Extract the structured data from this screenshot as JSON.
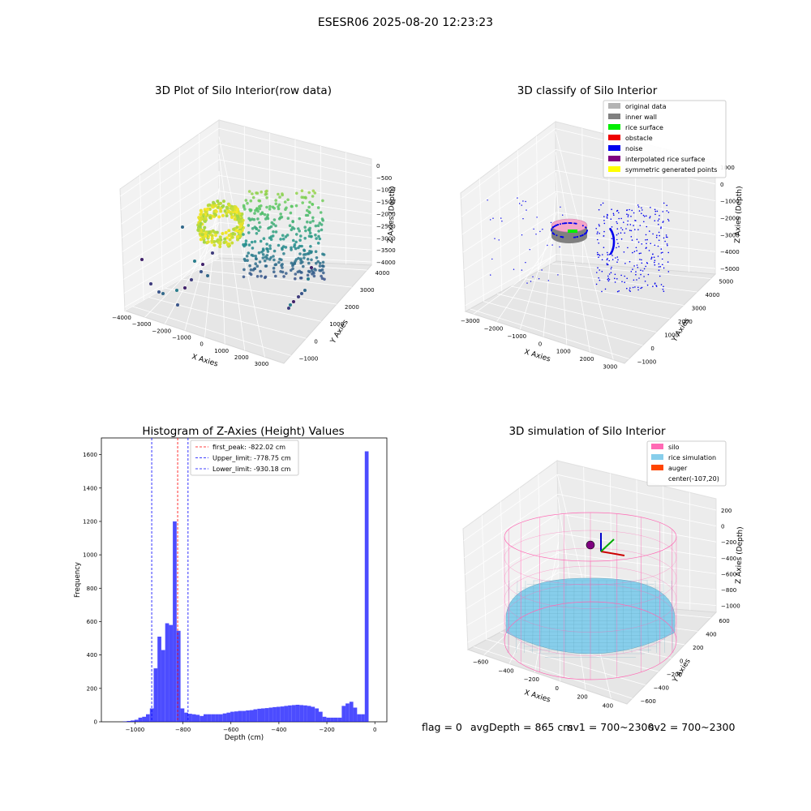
{
  "suptitle": "ESESR06 2025-08-20 12:23:23",
  "panels": {
    "raw": {
      "title": "3D Plot of Silo Interior(row data)",
      "xlabel": "X Axies",
      "ylabel": "Y Axies",
      "zlabel": "Z Axies (Depth)",
      "xticks": [
        "−4000",
        "−3000",
        "−2000",
        "−1000",
        "0",
        "1000",
        "2000",
        "3000"
      ],
      "yticks": [
        "−1000",
        "0",
        "1000",
        "2000",
        "3000",
        "4000"
      ],
      "zticks": [
        "0",
        "−500",
        "−1000",
        "−1500",
        "−2000",
        "−2500",
        "−3000",
        "−3500",
        "−4000"
      ]
    },
    "classify": {
      "title": "3D classify of Silo Interior",
      "xlabel": "X Axies",
      "ylabel": "Y Axies",
      "zlabel": "Z Axies (Depth)",
      "xticks": [
        "−3000",
        "−2000",
        "−1000",
        "0",
        "1000",
        "2000",
        "3000"
      ],
      "yticks": [
        "−1000",
        "0",
        "1000",
        "2000",
        "3000",
        "4000",
        "5000"
      ],
      "zticks": [
        "1000",
        "0",
        "−1000",
        "−2000",
        "−3000",
        "−4000",
        "−5000"
      ],
      "legend": [
        {
          "label": "original data",
          "color": "#b3b3b3"
        },
        {
          "label": "inner wall",
          "color": "#808080"
        },
        {
          "label": "rice surface",
          "color": "#00ee00"
        },
        {
          "label": "obstacle",
          "color": "#ee0000"
        },
        {
          "label": "noise",
          "color": "#0000ee"
        },
        {
          "label": "interpolated rice surface",
          "color": "#800080"
        },
        {
          "label": "symmetric generated points",
          "color": "#ffff00"
        }
      ]
    },
    "simulation": {
      "title": "3D simulation of Silo Interior",
      "xlabel": "X Axies",
      "ylabel": "Y Axies",
      "zlabel": "Z Axies (Depth)",
      "xticks": [
        "−600",
        "−400",
        "−200",
        "0",
        "200",
        "400"
      ],
      "yticks": [
        "−600",
        "−400",
        "−200",
        "0",
        "200",
        "400",
        "600"
      ],
      "zticks": [
        "200",
        "0",
        "−200",
        "−400",
        "−600",
        "−800",
        "−1000"
      ],
      "legend": [
        {
          "label": "silo",
          "color": "#ff69b4"
        },
        {
          "label": "rice simulation",
          "color": "#87ceeb"
        },
        {
          "label": "auger",
          "color": "#ff4500"
        },
        {
          "label": "center(-107,20)",
          "color": ""
        }
      ]
    }
  },
  "chart_data": {
    "type": "bar",
    "title": "Histogram of Z-Axies (Height) Values",
    "xlabel": "Depth (cm)",
    "ylabel": "Frequency",
    "xlim": [
      -1140,
      50
    ],
    "ylim": [
      0,
      1700
    ],
    "xticks": [
      -1000,
      -800,
      -600,
      -400,
      -200,
      0
    ],
    "yticks": [
      0,
      200,
      400,
      600,
      800,
      1000,
      1200,
      1400,
      1600
    ],
    "bar_color": "#0000ff",
    "bin_width": 16,
    "bins": [
      {
        "x": -1050,
        "value": 2
      },
      {
        "x": -1034,
        "value": 5
      },
      {
        "x": -1018,
        "value": 8
      },
      {
        "x": -1002,
        "value": 12
      },
      {
        "x": -986,
        "value": 25
      },
      {
        "x": -970,
        "value": 30
      },
      {
        "x": -954,
        "value": 45
      },
      {
        "x": -938,
        "value": 80
      },
      {
        "x": -922,
        "value": 320
      },
      {
        "x": -906,
        "value": 510
      },
      {
        "x": -890,
        "value": 430
      },
      {
        "x": -874,
        "value": 590
      },
      {
        "x": -858,
        "value": 580
      },
      {
        "x": -842,
        "value": 1200
      },
      {
        "x": -826,
        "value": 545
      },
      {
        "x": -810,
        "value": 80
      },
      {
        "x": -794,
        "value": 55
      },
      {
        "x": -778,
        "value": 48
      },
      {
        "x": -762,
        "value": 45
      },
      {
        "x": -746,
        "value": 42
      },
      {
        "x": -730,
        "value": 35
      },
      {
        "x": -714,
        "value": 45
      },
      {
        "x": -698,
        "value": 45
      },
      {
        "x": -682,
        "value": 45
      },
      {
        "x": -666,
        "value": 45
      },
      {
        "x": -650,
        "value": 45
      },
      {
        "x": -634,
        "value": 50
      },
      {
        "x": -618,
        "value": 55
      },
      {
        "x": -602,
        "value": 60
      },
      {
        "x": -586,
        "value": 62
      },
      {
        "x": -570,
        "value": 65
      },
      {
        "x": -554,
        "value": 65
      },
      {
        "x": -538,
        "value": 68
      },
      {
        "x": -522,
        "value": 70
      },
      {
        "x": -506,
        "value": 75
      },
      {
        "x": -490,
        "value": 78
      },
      {
        "x": -474,
        "value": 80
      },
      {
        "x": -458,
        "value": 82
      },
      {
        "x": -442,
        "value": 85
      },
      {
        "x": -426,
        "value": 88
      },
      {
        "x": -410,
        "value": 90
      },
      {
        "x": -394,
        "value": 92
      },
      {
        "x": -378,
        "value": 95
      },
      {
        "x": -362,
        "value": 98
      },
      {
        "x": -346,
        "value": 100
      },
      {
        "x": -330,
        "value": 102
      },
      {
        "x": -314,
        "value": 100
      },
      {
        "x": -298,
        "value": 98
      },
      {
        "x": -282,
        "value": 95
      },
      {
        "x": -266,
        "value": 90
      },
      {
        "x": -250,
        "value": 80
      },
      {
        "x": -234,
        "value": 60
      },
      {
        "x": -218,
        "value": 30
      },
      {
        "x": -202,
        "value": 25
      },
      {
        "x": -186,
        "value": 25
      },
      {
        "x": -170,
        "value": 25
      },
      {
        "x": -154,
        "value": 25
      },
      {
        "x": -138,
        "value": 95
      },
      {
        "x": -122,
        "value": 110
      },
      {
        "x": -106,
        "value": 120
      },
      {
        "x": -90,
        "value": 85
      },
      {
        "x": -74,
        "value": 45
      },
      {
        "x": -58,
        "value": 45
      },
      {
        "x": -42,
        "value": 1620
      },
      {
        "x": -26,
        "value": 0
      }
    ],
    "vlines": [
      {
        "x": -822.02,
        "color": "#ff0000",
        "label": "first_peak: -822.02 cm"
      },
      {
        "x": -778.75,
        "color": "#0000ff",
        "label": "Upper_limit: -778.75 cm"
      },
      {
        "x": -930.18,
        "color": "#0000ff",
        "label": "Lower_limit: -930.18 cm"
      }
    ]
  },
  "footer": {
    "flag": "flag = 0",
    "avg_depth": "avgDepth = 865 cm",
    "sv1": "sv1 = 700~2300",
    "sv2": "sv2 = 700~2300"
  }
}
